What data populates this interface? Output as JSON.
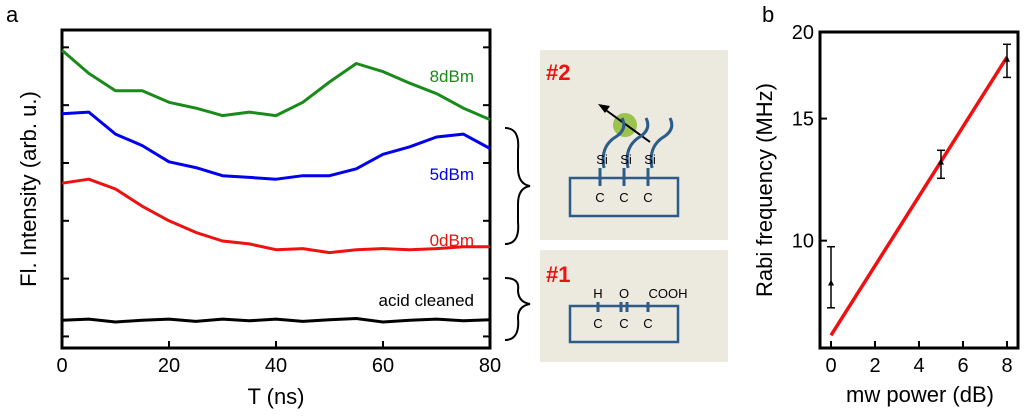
{
  "panel_labels": {
    "a": "a",
    "b": "b"
  },
  "legend_labels": {
    "8dBm": "8dBm",
    "5dBm": "5dBm",
    "0dBm": "0dBm",
    "acid": "acid cleaned"
  },
  "insets": {
    "top": {
      "label": "#2",
      "atoms": [
        "Si",
        "Si",
        "Si"
      ],
      "carbons": [
        "C",
        "C",
        "C"
      ]
    },
    "bottom": {
      "label": "#1",
      "groups": [
        "H",
        "O",
        "COOH"
      ],
      "carbons": [
        "C",
        "C",
        "C"
      ]
    }
  },
  "chart_data": [
    {
      "type": "line",
      "xlabel": "T (ns)",
      "ylabel": "Fl. Intensity (arb. u.)",
      "xlim": [
        0,
        80
      ],
      "x_ticks": [
        0,
        20,
        40,
        60,
        80
      ],
      "y_ticks": [
        0,
        1,
        2,
        3,
        4,
        5
      ],
      "ylim": [
        -0.2,
        5.3
      ],
      "colors": {
        "8dBm": "#1a8a1a",
        "5dBm": "#0000ee",
        "0dBm": "#ee1111",
        "acid": "#000000"
      },
      "series": [
        {
          "name": "8dBm",
          "x": [
            0,
            5,
            10,
            15,
            20,
            25,
            30,
            35,
            40,
            45,
            50,
            55,
            60,
            65,
            70,
            75,
            80
          ],
          "values": [
            4.95,
            4.55,
            4.25,
            4.25,
            4.05,
            3.95,
            3.82,
            3.88,
            3.82,
            4.05,
            4.4,
            4.72,
            4.58,
            4.38,
            4.2,
            3.95,
            3.75
          ]
        },
        {
          "name": "5dBm",
          "x": [
            0,
            5,
            10,
            15,
            20,
            25,
            30,
            35,
            40,
            45,
            50,
            55,
            60,
            65,
            70,
            75,
            80
          ],
          "values": [
            3.85,
            3.88,
            3.5,
            3.3,
            3.02,
            2.92,
            2.78,
            2.75,
            2.72,
            2.78,
            2.78,
            2.9,
            3.15,
            3.28,
            3.45,
            3.5,
            3.25
          ]
        },
        {
          "name": "0dBm",
          "x": [
            0,
            5,
            10,
            15,
            20,
            25,
            30,
            35,
            40,
            45,
            50,
            55,
            60,
            65,
            70,
            75,
            80
          ],
          "values": [
            2.65,
            2.72,
            2.55,
            2.25,
            2.0,
            1.8,
            1.65,
            1.6,
            1.5,
            1.52,
            1.45,
            1.5,
            1.52,
            1.5,
            1.52,
            1.55,
            1.55
          ]
        },
        {
          "name": "acid cleaned",
          "x": [
            0,
            5,
            10,
            15,
            20,
            25,
            30,
            35,
            40,
            45,
            50,
            55,
            60,
            65,
            70,
            75,
            80
          ],
          "values": [
            0.28,
            0.3,
            0.25,
            0.28,
            0.3,
            0.26,
            0.3,
            0.27,
            0.3,
            0.26,
            0.29,
            0.31,
            0.25,
            0.28,
            0.3,
            0.27,
            0.29
          ]
        }
      ]
    },
    {
      "type": "scatter",
      "xlabel": "mw power (dB)",
      "ylabel": "Rabi frequency (MHz)",
      "xlim": [
        -0.5,
        8.5
      ],
      "ylim": [
        7,
        20
      ],
      "y_scale": "log",
      "x_ticks": [
        0,
        2,
        4,
        6,
        8
      ],
      "y_ticks": [
        10,
        15,
        20
      ],
      "points": [
        {
          "x": 0,
          "y": 8.7,
          "err_low": 8.0,
          "err_high": 9.8
        },
        {
          "x": 5,
          "y": 13.0,
          "err_low": 12.3,
          "err_high": 13.5
        },
        {
          "x": 8,
          "y": 18.3,
          "err_low": 17.2,
          "err_high": 19.2
        }
      ],
      "fit": {
        "x": [
          0,
          8
        ],
        "y": [
          7.3,
          18.4
        ],
        "color": "#ee1111"
      }
    }
  ]
}
